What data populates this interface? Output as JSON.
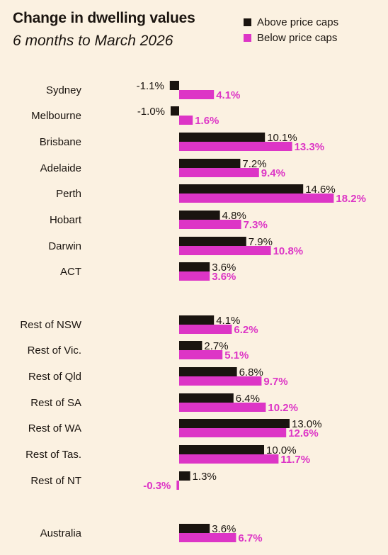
{
  "title": "Change in dwelling values",
  "subtitle": "6 months to March 2026",
  "colors": {
    "above": "#1a140f",
    "below": "#dd35c6",
    "background": "#fbf1e1"
  },
  "chart_data": {
    "type": "bar",
    "orientation": "horizontal",
    "title": "Change in dwelling values",
    "subtitle": "6 months to March 2026",
    "legend_position": "top-right",
    "grid": false,
    "categories": [
      "Sydney",
      "Melbourne",
      "Brisbane",
      "Adelaide",
      "Perth",
      "Hobart",
      "Darwin",
      "ACT",
      "Rest of NSW",
      "Rest of Vic.",
      "Rest of Qld",
      "Rest of SA",
      "Rest of WA",
      "Rest of Tas.",
      "Rest of NT",
      "Australia"
    ],
    "series": [
      {
        "name": "Above price caps",
        "values": [
          -1.1,
          -1.0,
          10.1,
          7.2,
          14.6,
          4.8,
          7.9,
          3.6,
          4.1,
          2.7,
          6.8,
          6.4,
          13.0,
          10.0,
          1.3,
          3.6
        ],
        "labels": [
          "-1.1%",
          "-1.0%",
          "10.1%",
          "7.2%",
          "14.6%",
          "4.8%",
          "7.9%",
          "3.6%",
          "4.1%",
          "2.7%",
          "6.8%",
          "6.4%",
          "13.0%",
          "10.0%",
          "1.3%",
          "3.6%"
        ]
      },
      {
        "name": "Below price caps",
        "values": [
          4.1,
          1.6,
          13.3,
          9.4,
          18.2,
          7.3,
          10.8,
          3.6,
          6.2,
          5.1,
          9.7,
          10.2,
          12.6,
          11.7,
          -0.3,
          6.7
        ],
        "labels": [
          "4.1%",
          "1.6%",
          "13.3%",
          "9.4%",
          "18.2%",
          "7.3%",
          "10.8%",
          "3.6%",
          "6.2%",
          "5.1%",
          "9.7%",
          "10.2%",
          "12.6%",
          "11.7%",
          "-0.3%",
          "6.7%"
        ]
      }
    ]
  }
}
